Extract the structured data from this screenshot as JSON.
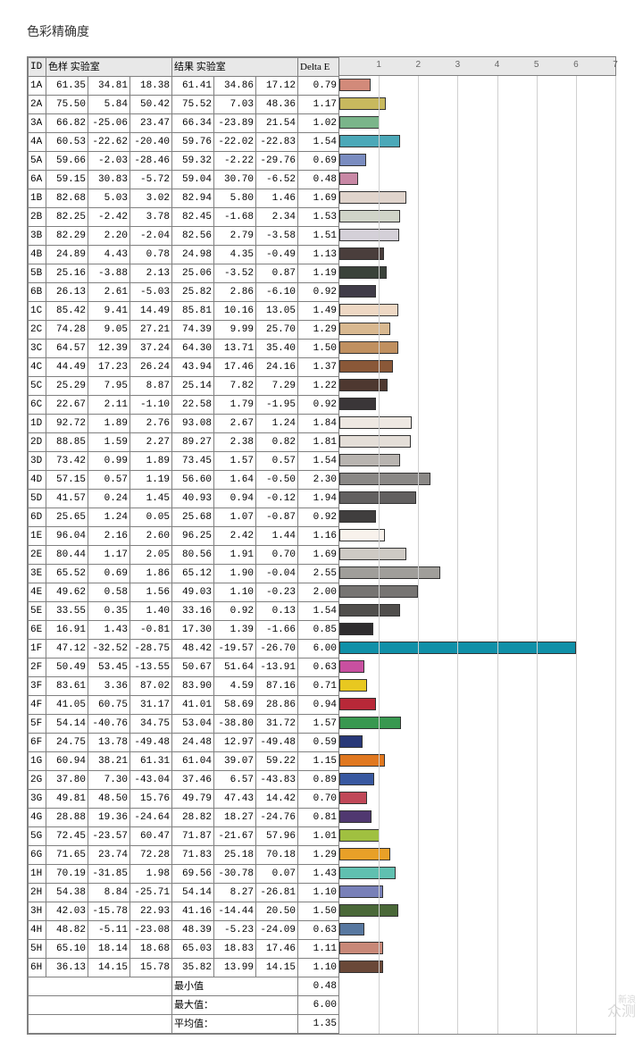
{
  "title": "色彩精确度",
  "headers": {
    "id": "ID",
    "sample": "色样 实验室",
    "result": "结果 实验室",
    "delta": "Delta E"
  },
  "axis": {
    "max": 7,
    "ticks": [
      1,
      2,
      3,
      4,
      5,
      6,
      7
    ]
  },
  "summary": {
    "min_label": "最小值",
    "max_label": "最大值：",
    "avg_label": "平均值：",
    "min": "0.48",
    "max": "6.00",
    "avg": "1.35"
  },
  "watermark": {
    "top": "新浪",
    "bottom": "众测"
  },
  "rows": [
    {
      "id": "1A",
      "s": [
        61.35,
        34.81,
        18.38
      ],
      "r": [
        61.41,
        34.86,
        17.12
      ],
      "d": 0.79,
      "c": "#d28a7a"
    },
    {
      "id": "2A",
      "s": [
        75.5,
        5.84,
        50.42
      ],
      "r": [
        75.52,
        7.03,
        48.36
      ],
      "d": 1.17,
      "c": "#c8b95e"
    },
    {
      "id": "3A",
      "s": [
        66.82,
        -25.06,
        23.47
      ],
      "r": [
        66.34,
        -23.89,
        21.54
      ],
      "d": 1.02,
      "c": "#7ab58a"
    },
    {
      "id": "4A",
      "s": [
        60.53,
        -22.62,
        -20.4
      ],
      "r": [
        59.76,
        -22.02,
        -22.83
      ],
      "d": 1.54,
      "c": "#4ba8b8"
    },
    {
      "id": "5A",
      "s": [
        59.66,
        -2.03,
        -28.46
      ],
      "r": [
        59.32,
        -2.22,
        -29.76
      ],
      "d": 0.69,
      "c": "#7a8cc0"
    },
    {
      "id": "6A",
      "s": [
        59.15,
        30.83,
        -5.72
      ],
      "r": [
        59.04,
        30.7,
        -6.52
      ],
      "d": 0.48,
      "c": "#c888a5"
    },
    {
      "id": "1B",
      "s": [
        82.68,
        5.03,
        3.02
      ],
      "r": [
        82.94,
        5.8,
        1.46
      ],
      "d": 1.69,
      "c": "#e0d4cc"
    },
    {
      "id": "2B",
      "s": [
        82.25,
        -2.42,
        3.78
      ],
      "r": [
        82.45,
        -1.68,
        2.34
      ],
      "d": 1.53,
      "c": "#d0d4c8"
    },
    {
      "id": "3B",
      "s": [
        82.29,
        2.2,
        -2.04
      ],
      "r": [
        82.56,
        2.79,
        -3.58
      ],
      "d": 1.51,
      "c": "#d4d0d8"
    },
    {
      "id": "4B",
      "s": [
        24.89,
        4.43,
        0.78
      ],
      "r": [
        24.98,
        4.35,
        -0.49
      ],
      "d": 1.13,
      "c": "#4a3e3c"
    },
    {
      "id": "5B",
      "s": [
        25.16,
        -3.88,
        2.13
      ],
      "r": [
        25.06,
        -3.52,
        0.87
      ],
      "d": 1.19,
      "c": "#3a423a"
    },
    {
      "id": "6B",
      "s": [
        26.13,
        2.61,
        -5.03
      ],
      "r": [
        25.82,
        2.86,
        -6.1
      ],
      "d": 0.92,
      "c": "#403c48"
    },
    {
      "id": "1C",
      "s": [
        85.42,
        9.41,
        14.49
      ],
      "r": [
        85.81,
        10.16,
        13.05
      ],
      "d": 1.49,
      "c": "#eed8c4"
    },
    {
      "id": "2C",
      "s": [
        74.28,
        9.05,
        27.21
      ],
      "r": [
        74.39,
        9.99,
        25.7
      ],
      "d": 1.29,
      "c": "#d8b890"
    },
    {
      "id": "3C",
      "s": [
        64.57,
        12.39,
        37.24
      ],
      "r": [
        64.3,
        13.71,
        35.4
      ],
      "d": 1.5,
      "c": "#c09060"
    },
    {
      "id": "4C",
      "s": [
        44.49,
        17.23,
        26.24
      ],
      "r": [
        43.94,
        17.46,
        24.16
      ],
      "d": 1.37,
      "c": "#8a5838"
    },
    {
      "id": "5C",
      "s": [
        25.29,
        7.95,
        8.87
      ],
      "r": [
        25.14,
        7.82,
        7.29
      ],
      "d": 1.22,
      "c": "#4e3830"
    },
    {
      "id": "6C",
      "s": [
        22.67,
        2.11,
        -1.1
      ],
      "r": [
        22.58,
        1.79,
        -1.95
      ],
      "d": 0.92,
      "c": "#3a3638"
    },
    {
      "id": "1D",
      "s": [
        92.72,
        1.89,
        2.76
      ],
      "r": [
        93.08,
        2.67,
        1.24
      ],
      "d": 1.84,
      "c": "#eee8e2"
    },
    {
      "id": "2D",
      "s": [
        88.85,
        1.59,
        2.27
      ],
      "r": [
        89.27,
        2.38,
        0.82
      ],
      "d": 1.81,
      "c": "#e4ded8"
    },
    {
      "id": "3D",
      "s": [
        73.42,
        0.99,
        1.89
      ],
      "r": [
        73.45,
        1.57,
        0.57
      ],
      "d": 1.54,
      "c": "#b8b4b0"
    },
    {
      "id": "4D",
      "s": [
        57.15,
        0.57,
        1.19
      ],
      "r": [
        56.6,
        1.64,
        -0.5
      ],
      "d": 2.3,
      "c": "#8a8886"
    },
    {
      "id": "5D",
      "s": [
        41.57,
        0.24,
        1.45
      ],
      "r": [
        40.93,
        0.94,
        -0.12
      ],
      "d": 1.94,
      "c": "#626060"
    },
    {
      "id": "6D",
      "s": [
        25.65,
        1.24,
        0.05
      ],
      "r": [
        25.68,
        1.07,
        -0.87
      ],
      "d": 0.92,
      "c": "#403e3e"
    },
    {
      "id": "1E",
      "s": [
        96.04,
        2.16,
        2.6
      ],
      "r": [
        96.25,
        2.42,
        1.44
      ],
      "d": 1.16,
      "c": "#f8f2ec"
    },
    {
      "id": "2E",
      "s": [
        80.44,
        1.17,
        2.05
      ],
      "r": [
        80.56,
        1.91,
        0.7
      ],
      "d": 1.69,
      "c": "#cecac4"
    },
    {
      "id": "3E",
      "s": [
        65.52,
        0.69,
        1.86
      ],
      "r": [
        65.12,
        1.9,
        -0.04
      ],
      "d": 2.55,
      "c": "#a09e9a"
    },
    {
      "id": "4E",
      "s": [
        49.62,
        0.58,
        1.56
      ],
      "r": [
        49.03,
        1.1,
        -0.23
      ],
      "d": 2.0,
      "c": "#767472"
    },
    {
      "id": "5E",
      "s": [
        33.55,
        0.35,
        1.4
      ],
      "r": [
        33.16,
        0.92,
        0.13
      ],
      "d": 1.54,
      "c": "#504e4c"
    },
    {
      "id": "6E",
      "s": [
        16.91,
        1.43,
        -0.81
      ],
      "r": [
        17.3,
        1.39,
        -1.66
      ],
      "d": 0.85,
      "c": "#2e2c2e"
    },
    {
      "id": "1F",
      "s": [
        47.12,
        -32.52,
        -28.75
      ],
      "r": [
        48.42,
        -19.57,
        -26.7
      ],
      "d": 6.0,
      "c": "#1090a8"
    },
    {
      "id": "2F",
      "s": [
        50.49,
        53.45,
        -13.55
      ],
      "r": [
        50.67,
        51.64,
        -13.91
      ],
      "d": 0.63,
      "c": "#c850a0"
    },
    {
      "id": "3F",
      "s": [
        83.61,
        3.36,
        87.02
      ],
      "r": [
        83.9,
        4.59,
        87.16
      ],
      "d": 0.71,
      "c": "#e8c820"
    },
    {
      "id": "4F",
      "s": [
        41.05,
        60.75,
        31.17
      ],
      "r": [
        41.01,
        58.69,
        28.86
      ],
      "d": 0.94,
      "c": "#b82838"
    },
    {
      "id": "5F",
      "s": [
        54.14,
        -40.76,
        34.75
      ],
      "r": [
        53.04,
        -38.8,
        31.72
      ],
      "d": 1.57,
      "c": "#389850"
    },
    {
      "id": "6F",
      "s": [
        24.75,
        13.78,
        -49.48
      ],
      "r": [
        24.48,
        12.97,
        -49.48
      ],
      "d": 0.59,
      "c": "#283878"
    },
    {
      "id": "1G",
      "s": [
        60.94,
        38.21,
        61.31
      ],
      "r": [
        61.04,
        39.07,
        59.22
      ],
      "d": 1.15,
      "c": "#e07820"
    },
    {
      "id": "2G",
      "s": [
        37.8,
        7.3,
        -43.04
      ],
      "r": [
        37.46,
        6.57,
        -43.83
      ],
      "d": 0.89,
      "c": "#3858a0"
    },
    {
      "id": "3G",
      "s": [
        49.81,
        48.5,
        15.76
      ],
      "r": [
        49.79,
        47.43,
        14.42
      ],
      "d": 0.7,
      "c": "#c04858"
    },
    {
      "id": "4G",
      "s": [
        28.88,
        19.36,
        -24.64
      ],
      "r": [
        28.82,
        18.27,
        -24.76
      ],
      "d": 0.81,
      "c": "#503870"
    },
    {
      "id": "5G",
      "s": [
        72.45,
        -23.57,
        60.47
      ],
      "r": [
        71.87,
        -21.67,
        57.96
      ],
      "d": 1.01,
      "c": "#a0c040"
    },
    {
      "id": "6G",
      "s": [
        71.65,
        23.74,
        72.28
      ],
      "r": [
        71.83,
        25.18,
        70.18
      ],
      "d": 1.29,
      "c": "#e8a028"
    },
    {
      "id": "1H",
      "s": [
        70.19,
        -31.85,
        1.98
      ],
      "r": [
        69.56,
        -30.78,
        0.07
      ],
      "d": 1.43,
      "c": "#60c0b0"
    },
    {
      "id": "2H",
      "s": [
        54.38,
        8.84,
        -25.71
      ],
      "r": [
        54.14,
        8.27,
        -26.81
      ],
      "d": 1.1,
      "c": "#7880b8"
    },
    {
      "id": "3H",
      "s": [
        42.03,
        -15.78,
        22.93
      ],
      "r": [
        41.16,
        -14.44,
        20.5
      ],
      "d": 1.5,
      "c": "#4a6838"
    },
    {
      "id": "4H",
      "s": [
        48.82,
        -5.11,
        -23.08
      ],
      "r": [
        48.39,
        -5.23,
        -24.09
      ],
      "d": 0.63,
      "c": "#5878a0"
    },
    {
      "id": "5H",
      "s": [
        65.1,
        18.14,
        18.68
      ],
      "r": [
        65.03,
        18.83,
        17.46
      ],
      "d": 1.11,
      "c": "#c88878"
    },
    {
      "id": "6H",
      "s": [
        36.13,
        14.15,
        15.78
      ],
      "r": [
        35.82,
        13.99,
        14.15
      ],
      "d": 1.1,
      "c": "#6a4838"
    }
  ]
}
